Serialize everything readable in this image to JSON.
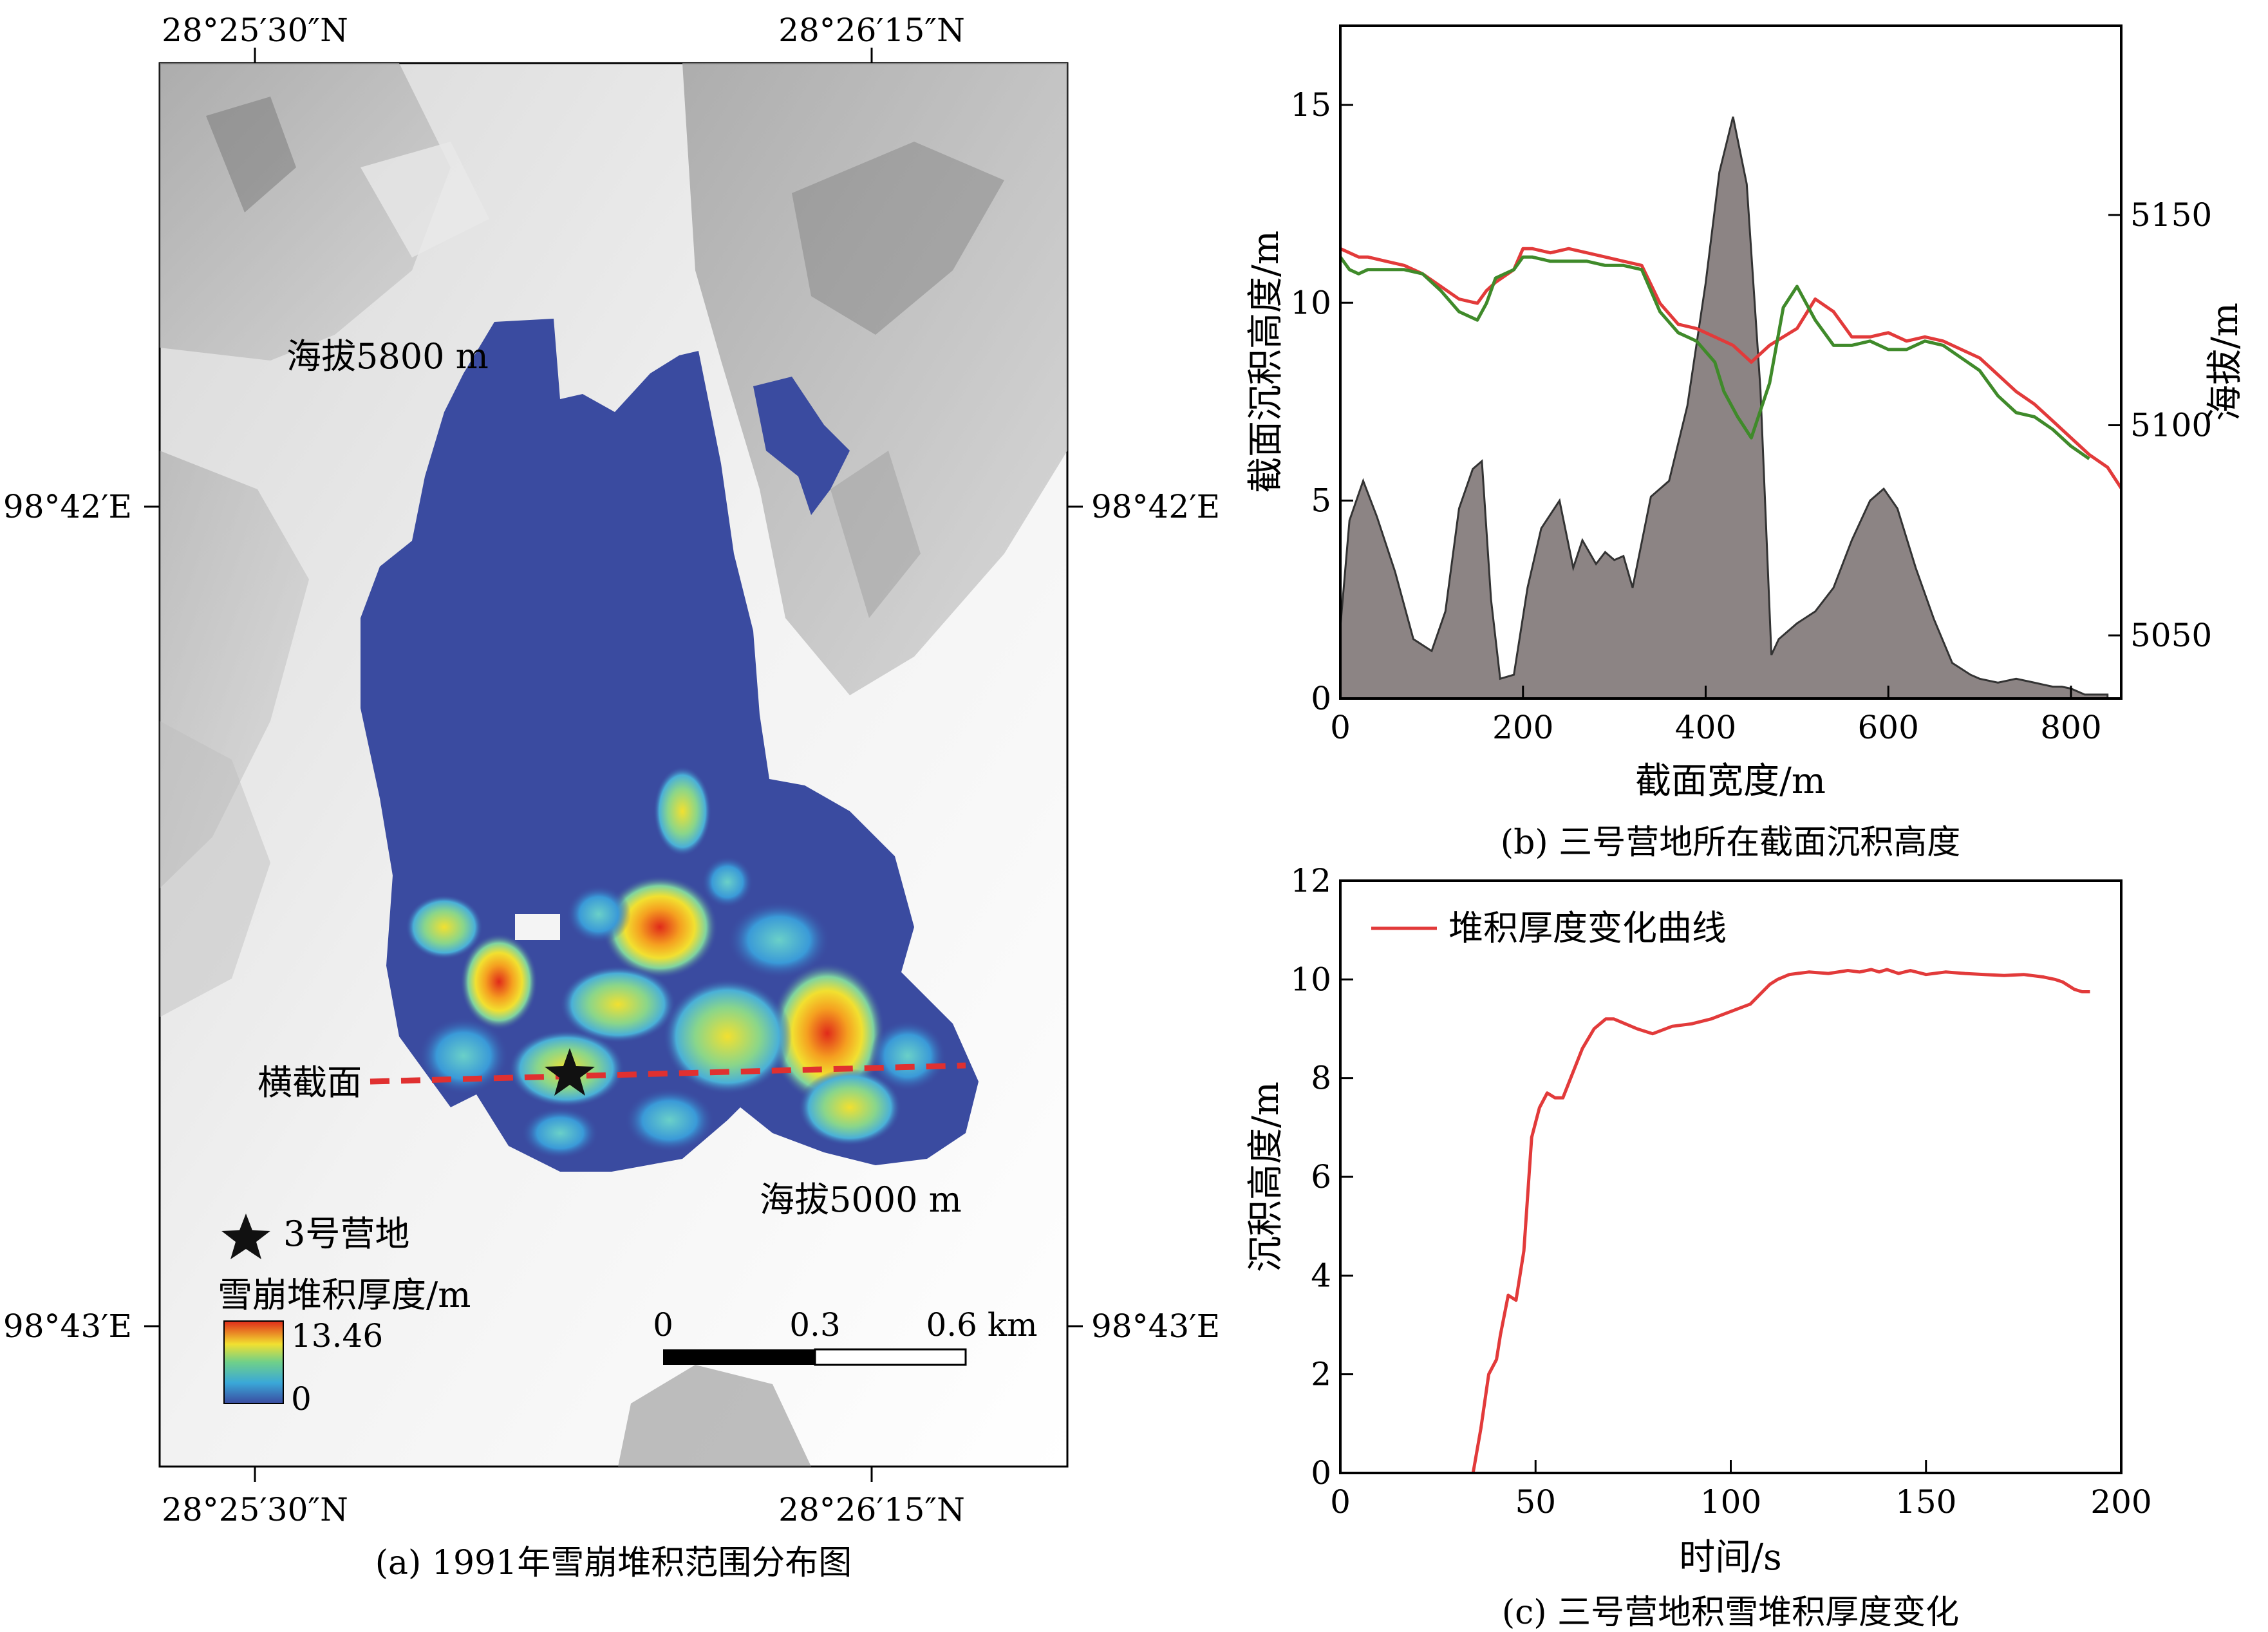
{
  "panel_a": {
    "caption": "(a) 1991年雪崩堆积范围分布图",
    "lat_top_left": "28°25′30″N",
    "lat_top_right": "28°26′15″N",
    "lat_bottom_left": "28°25′30″N",
    "lat_bottom_right": "28°26′15″N",
    "lon_upper_left": "98°42′E",
    "lon_upper_right": "98°42′E",
    "lon_lower_left": "98°43′E",
    "lon_lower_right": "98°43′E",
    "label_elev_high": "海拔5800 m",
    "label_elev_low": "海拔5000 m",
    "label_section": "横截面",
    "legend_camp": "3号营地",
    "legend_title": "雪崩堆积厚度/m",
    "legend_max": "13.46",
    "legend_min": "0",
    "scale_0": "0",
    "scale_mid": "0.3",
    "scale_end": "0.6 km",
    "colors": {
      "deposit_base": "#3a4ba0",
      "section_line": "#e03030",
      "hot": "#e02a1a"
    }
  },
  "panel_b": {
    "caption": "(b) 三号营地所在截面沉积高度",
    "colors": {
      "fill": "#8c8484",
      "red": "#e23a3a",
      "green": "#3f8a2a"
    }
  },
  "panel_c": {
    "caption": "(c) 三号营地积雪堆积厚度变化",
    "colors": {
      "line": "#e23a3a"
    }
  },
  "chart_data": [
    {
      "type": "area",
      "xlabel": "截面宽度/m",
      "ylabel": "截面沉积高度/m",
      "y2label": "海拔/m",
      "xlim": [
        0,
        855
      ],
      "ylim": [
        0,
        17
      ],
      "y2lim": [
        5035,
        5195
      ],
      "xticks": [
        0,
        200,
        400,
        600,
        800
      ],
      "yticks": [
        0,
        5,
        10,
        15
      ],
      "y2ticks": [
        5050,
        5100,
        5150
      ],
      "series": [
        {
          "kind": "area",
          "axis": "left",
          "x": [
            0,
            10,
            25,
            40,
            60,
            80,
            100,
            115,
            130,
            145,
            155,
            165,
            175,
            190,
            205,
            220,
            240,
            255,
            265,
            280,
            290,
            300,
            310,
            320,
            340,
            360,
            380,
            400,
            415,
            430,
            445,
            460,
            472,
            480,
            500,
            520,
            540,
            560,
            580,
            595,
            610,
            630,
            650,
            670,
            690,
            700,
            720,
            740,
            760,
            780,
            790,
            800,
            815,
            840
          ],
          "values": [
            1.8,
            4.5,
            5.5,
            4.6,
            3.2,
            1.5,
            1.2,
            2.2,
            4.8,
            5.8,
            6.0,
            2.5,
            0.5,
            0.6,
            2.8,
            4.3,
            5.0,
            3.3,
            4.0,
            3.4,
            3.7,
            3.5,
            3.6,
            2.8,
            5.1,
            5.5,
            7.4,
            10.5,
            13.3,
            14.7,
            13.0,
            7.8,
            1.1,
            1.5,
            1.9,
            2.2,
            2.8,
            4.0,
            5.0,
            5.3,
            4.8,
            3.3,
            2.0,
            0.9,
            0.6,
            0.5,
            0.4,
            0.5,
            0.4,
            0.3,
            0.3,
            0.25,
            0.1,
            0.1
          ]
        },
        {
          "kind": "line",
          "axis": "right",
          "x": [
            0,
            10,
            20,
            30,
            50,
            70,
            90,
            110,
            130,
            150,
            160,
            170,
            190,
            200,
            210,
            230,
            250,
            270,
            290,
            310,
            330,
            350,
            370,
            390,
            410,
            430,
            450,
            470,
            485,
            500,
            520,
            540,
            560,
            580,
            600,
            620,
            640,
            660,
            680,
            700,
            720,
            740,
            760,
            780,
            800,
            820,
            840,
            855
          ],
          "values": [
            5142,
            5141,
            5140,
            5140,
            5139,
            5138,
            5136,
            5133,
            5130,
            5129,
            5132,
            5134,
            5137,
            5142,
            5142,
            5141,
            5142,
            5141,
            5140,
            5139,
            5138,
            5129,
            5124,
            5123,
            5121,
            5119,
            5115,
            5119,
            5121,
            5123,
            5130,
            5127,
            5121,
            5121,
            5122,
            5120,
            5121,
            5120,
            5118,
            5116,
            5112,
            5108,
            5105,
            5101,
            5097,
            5093,
            5090,
            5085
          ]
        },
        {
          "kind": "line",
          "axis": "right",
          "x": [
            0,
            10,
            20,
            30,
            50,
            70,
            90,
            110,
            130,
            150,
            160,
            170,
            190,
            200,
            210,
            230,
            250,
            270,
            290,
            310,
            330,
            350,
            370,
            390,
            410,
            420,
            435,
            450,
            470,
            485,
            500,
            520,
            540,
            560,
            580,
            600,
            620,
            640,
            660,
            680,
            700,
            720,
            740,
            760,
            780,
            800,
            820
          ],
          "values": [
            5140,
            5137,
            5136,
            5137,
            5137,
            5137,
            5136,
            5132,
            5127,
            5125,
            5129,
            5135,
            5137,
            5140,
            5140,
            5139,
            5139,
            5139,
            5138,
            5138,
            5137,
            5127,
            5122,
            5120,
            5115,
            5108,
            5102,
            5097,
            5110,
            5128,
            5133,
            5125,
            5119,
            5119,
            5120,
            5118,
            5118,
            5120,
            5119,
            5116,
            5113,
            5107,
            5103,
            5102,
            5099,
            5095,
            5092
          ]
        }
      ]
    },
    {
      "type": "line",
      "xlabel": "时间/s",
      "ylabel": "沉积高度/m",
      "xlim": [
        0,
        200
      ],
      "ylim": [
        0,
        12
      ],
      "xticks": [
        0,
        50,
        100,
        150,
        200
      ],
      "yticks": [
        0,
        2,
        4,
        6,
        8,
        10,
        12
      ],
      "series": [
        {
          "name": "堆积厚度变化曲线",
          "x": [
            34,
            36,
            38,
            40,
            41,
            43,
            45,
            47,
            49,
            51,
            53,
            55,
            57,
            59,
            62,
            65,
            68,
            70,
            73,
            76,
            80,
            85,
            90,
            95,
            100,
            105,
            110,
            112,
            115,
            120,
            125,
            130,
            133,
            136,
            138,
            140,
            143,
            146,
            150,
            155,
            160,
            165,
            170,
            175,
            180,
            183,
            185,
            188,
            190,
            192
          ],
          "values": [
            0,
            0.9,
            2.0,
            2.3,
            2.8,
            3.6,
            3.5,
            4.5,
            6.8,
            7.4,
            7.7,
            7.6,
            7.6,
            8.0,
            8.6,
            9.0,
            9.2,
            9.2,
            9.1,
            9.0,
            8.9,
            9.05,
            9.1,
            9.2,
            9.35,
            9.5,
            9.9,
            10.0,
            10.1,
            10.15,
            10.12,
            10.18,
            10.15,
            10.2,
            10.15,
            10.2,
            10.12,
            10.18,
            10.1,
            10.15,
            10.12,
            10.1,
            10.08,
            10.1,
            10.05,
            10.0,
            9.95,
            9.8,
            9.75,
            9.75
          ]
        }
      ]
    }
  ]
}
